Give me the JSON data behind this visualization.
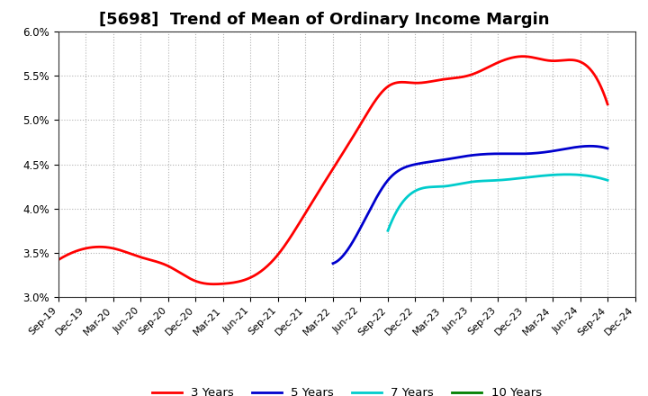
{
  "title": "[5698]  Trend of Mean of Ordinary Income Margin",
  "ylim": [
    0.03,
    0.06
  ],
  "yticks": [
    0.03,
    0.035,
    0.04,
    0.045,
    0.05,
    0.055,
    0.06
  ],
  "ytick_labels": [
    "3.0%",
    "3.5%",
    "4.0%",
    "4.5%",
    "5.0%",
    "5.5%",
    "6.0%"
  ],
  "x_labels": [
    "Sep-19",
    "Dec-19",
    "Mar-20",
    "Jun-20",
    "Sep-20",
    "Dec-20",
    "Mar-21",
    "Jun-21",
    "Sep-21",
    "Dec-21",
    "Mar-22",
    "Jun-22",
    "Sep-22",
    "Dec-22",
    "Mar-23",
    "Jun-23",
    "Sep-23",
    "Dec-23",
    "Mar-24",
    "Jun-24",
    "Sep-24",
    "Dec-24"
  ],
  "series": {
    "3 Years": {
      "color": "#FF0000",
      "linewidth": 2.0,
      "data": [
        0.0342,
        0.0355,
        0.0355,
        0.0345,
        0.0335,
        0.0318,
        0.0315,
        0.0322,
        0.0348,
        0.0395,
        0.0445,
        0.0495,
        0.0538,
        0.0542,
        0.0546,
        0.0551,
        0.0565,
        0.0572,
        0.0567,
        0.0566,
        0.0518,
        null
      ]
    },
    "5 Years": {
      "color": "#0000CD",
      "linewidth": 2.0,
      "data": [
        null,
        null,
        null,
        null,
        null,
        null,
        null,
        null,
        null,
        null,
        0.0338,
        0.0378,
        0.0432,
        0.045,
        0.0455,
        0.046,
        0.0462,
        0.0462,
        0.0465,
        0.047,
        0.0468,
        null
      ]
    },
    "7 Years": {
      "color": "#00CCCC",
      "linewidth": 2.0,
      "data": [
        null,
        null,
        null,
        null,
        null,
        null,
        null,
        null,
        null,
        null,
        null,
        null,
        0.0375,
        0.042,
        0.0425,
        0.043,
        0.0432,
        0.0435,
        0.0438,
        0.0438,
        0.0432,
        null
      ]
    },
    "10 Years": {
      "color": "#008000",
      "linewidth": 2.0,
      "data": [
        null,
        null,
        null,
        null,
        null,
        null,
        null,
        null,
        null,
        null,
        null,
        null,
        null,
        null,
        null,
        null,
        null,
        null,
        null,
        null,
        null,
        null
      ]
    }
  },
  "background_color": "#FFFFFF",
  "plot_bg_color": "#FFFFFF",
  "grid_color": "#AAAAAA",
  "title_fontsize": 13,
  "tick_fontsize": 8.5,
  "legend_fontsize": 9.5
}
